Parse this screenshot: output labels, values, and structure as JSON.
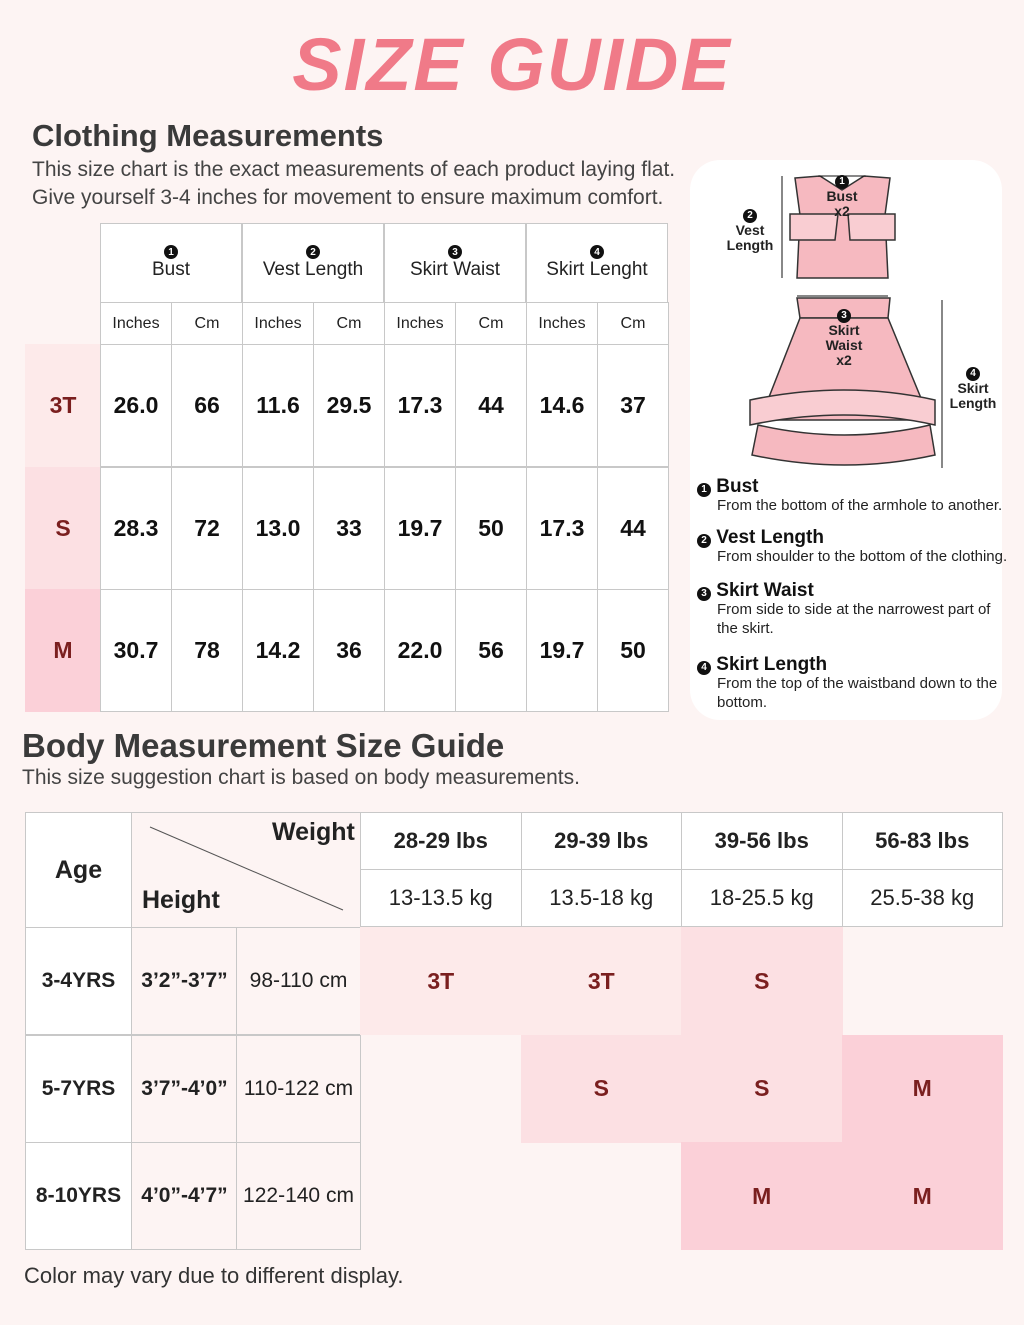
{
  "title": "SIZE GUIDE",
  "clothing": {
    "heading": "Clothing Measurements",
    "description": [
      "This size chart is the exact measurements of each product laying flat.",
      "Give yourself 3-4 inches for movement to ensure maximum comfort."
    ],
    "columns": [
      {
        "number": "1",
        "name": "Bust",
        "units": [
          "Inches",
          "Cm"
        ]
      },
      {
        "number": "2",
        "name": "Vest Length",
        "units": [
          "Inches",
          "Cm"
        ]
      },
      {
        "number": "3",
        "name": "Skirt Waist",
        "units": [
          "Inches",
          "Cm"
        ]
      },
      {
        "number": "4",
        "name": "Skirt Lenght",
        "units": [
          "Inches",
          "Cm"
        ]
      }
    ],
    "rows": [
      {
        "size": "3T",
        "values": [
          "26.0",
          "66",
          "11.6",
          "29.5",
          "17.3",
          "44",
          "14.6",
          "37"
        ]
      },
      {
        "size": "S",
        "values": [
          "28.3",
          "72",
          "13.0",
          "33",
          "19.7",
          "50",
          "17.3",
          "44"
        ]
      },
      {
        "size": "M",
        "values": [
          "30.7",
          "78",
          "14.2",
          "36",
          "22.0",
          "56",
          "19.7",
          "50"
        ]
      }
    ]
  },
  "diagram": {
    "labels": [
      {
        "number": "1",
        "lines": [
          "Bust",
          "x2"
        ]
      },
      {
        "number": "2",
        "lines": [
          "Vest",
          "Length"
        ]
      },
      {
        "number": "3",
        "lines": [
          "Skirt",
          "Waist",
          "x2"
        ]
      },
      {
        "number": "4",
        "lines": [
          "Skirt",
          "Length"
        ]
      }
    ]
  },
  "definitions": [
    {
      "number": "1",
      "term": "Bust",
      "text": [
        "From the bottom of the armhole to another."
      ]
    },
    {
      "number": "2",
      "term": "Vest Length",
      "text": [
        "From shoulder to the bottom of the clothing."
      ]
    },
    {
      "number": "3",
      "term": "Skirt Waist",
      "text": [
        "From side to side at the narrowest part of",
        "the skirt."
      ]
    },
    {
      "number": "4",
      "term": "Skirt Length",
      "text": [
        "From the top of the waistband down to the",
        "bottom."
      ]
    }
  ],
  "body": {
    "heading": "Body Measurement Size Guide",
    "description": "This size suggestion chart is based on body measurements.",
    "age_header": "Age",
    "weight_header": "Weight",
    "height_header": "Height",
    "weights": [
      {
        "lbs": "28-29 lbs",
        "kg": "13-13.5 kg"
      },
      {
        "lbs": "29-39 lbs",
        "kg": "13.5-18 kg"
      },
      {
        "lbs": "39-56 lbs",
        "kg": "18-25.5 kg"
      },
      {
        "lbs": "56-83 lbs",
        "kg": "25.5-38 kg"
      }
    ],
    "rows": [
      {
        "age": "3-4YRS",
        "height_ft": "3’2”-3’7”",
        "height_cm": "98-110 cm",
        "sizes": [
          "3T",
          "3T",
          "S",
          null
        ]
      },
      {
        "age": "5-7YRS",
        "height_ft": "3’7”-4’0”",
        "height_cm": "110-122 cm",
        "sizes": [
          null,
          "S",
          "S",
          "M"
        ]
      },
      {
        "age": "8-10YRS",
        "height_ft": "4’0”-4’7”",
        "height_cm": "122-140 cm",
        "sizes": [
          null,
          null,
          "M",
          "M"
        ]
      }
    ]
  },
  "footer": "Color may vary due to different display."
}
